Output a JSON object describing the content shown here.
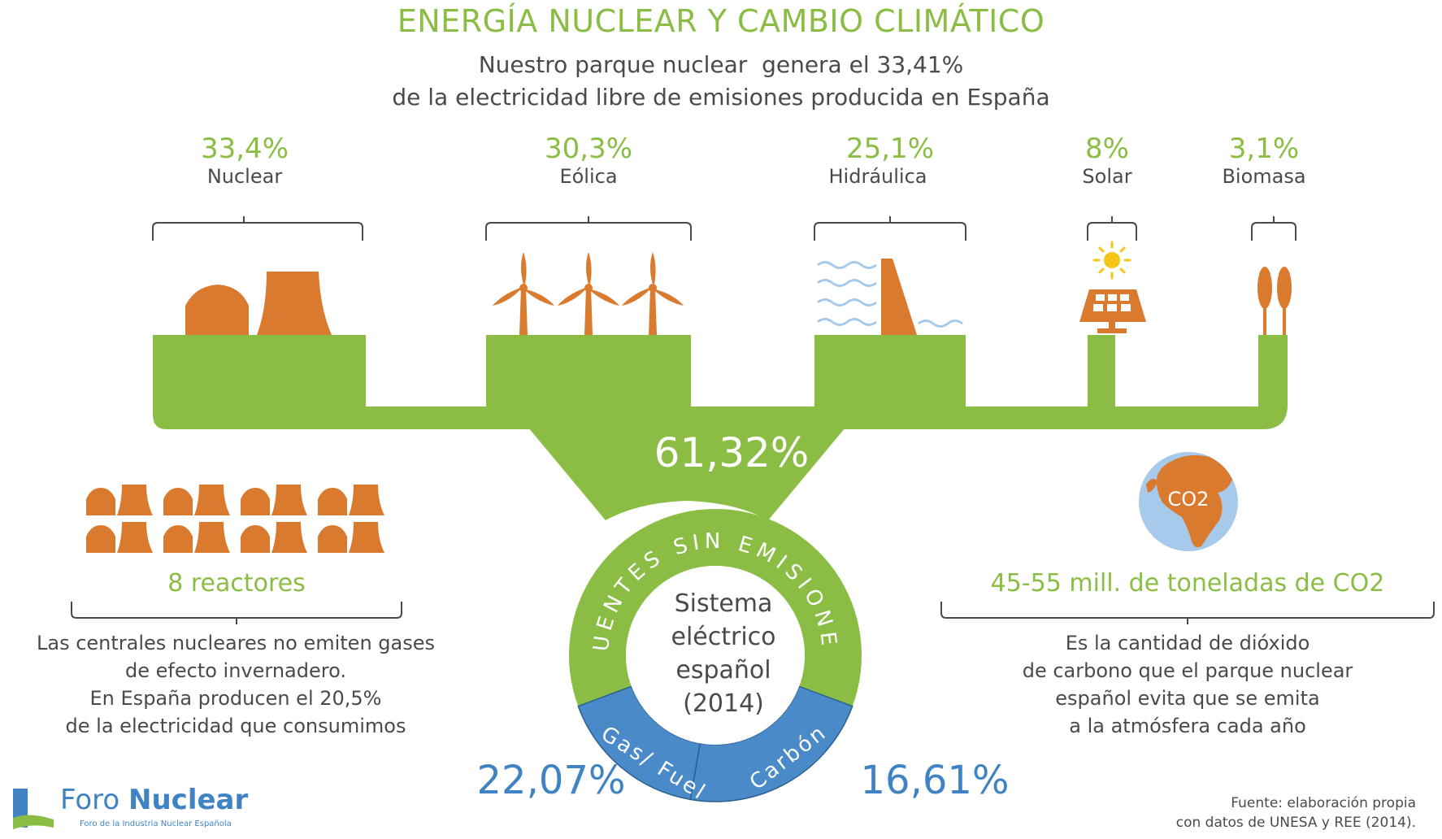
{
  "header": {
    "title": "ENERGÍA NUCLEAR Y CAMBIO CLIMÁTICO",
    "subtitle_line1": "Nuestro parque nuclear  genera el 33,41%",
    "subtitle_line2": "de la electricidad libre de emisiones producida en España"
  },
  "chart_data": [
    {
      "type": "bar",
      "categories": [
        "Nuclear",
        "Eólica",
        "Hidráulica",
        "Solar",
        "Biomasa"
      ],
      "values": [
        33.4,
        30.3,
        25.1,
        8,
        3.1
      ],
      "labels": [
        "33,4%",
        "30,3%",
        "25,1%",
        "8%",
        "3,1%"
      ],
      "unit": "%"
    },
    {
      "type": "pie",
      "center_label": [
        "Sistema",
        "eléctrico",
        "español",
        "(2014)"
      ],
      "segments": [
        {
          "name": "FUENTES SIN EMISIONES",
          "value": 61.32,
          "label": "61,32%",
          "color": "#8bbd45"
        },
        {
          "name": "Gas/ Fuel",
          "value": 22.07,
          "label": "22,07%",
          "color": "#4a8ac8"
        },
        {
          "name": "Carbón",
          "value": 16.61,
          "label": "16,61%",
          "color": "#4a8ac8"
        }
      ]
    }
  ],
  "left_panel": {
    "heading": "8 reactores",
    "reactor_count": 8,
    "text": [
      "Las centrales nucleares no emiten gases",
      "de efecto invernadero.",
      "En España producen el 20,5%",
      "de la electricidad que consumimos"
    ]
  },
  "right_panel": {
    "globe_label": "CO2",
    "heading": "45-55 mill. de toneladas de CO2",
    "text": [
      "Es la cantidad de dióxido",
      "de carbono que el parque nuclear",
      "español evita que se emita",
      "a la atmósfera cada año"
    ]
  },
  "footer": {
    "logo_word1": "Foro",
    "logo_word2": "Nuclear",
    "logo_tagline": "Foro de la Industria Nuclear Española",
    "source_line1": "Fuente: elaboración propia",
    "source_line2": "con datos de UNESA y REE (2014)."
  },
  "colors": {
    "green": "#8bbd45",
    "orange": "#d97a2e",
    "blue": "#4a8ac8",
    "text": "#4a4a4a"
  }
}
